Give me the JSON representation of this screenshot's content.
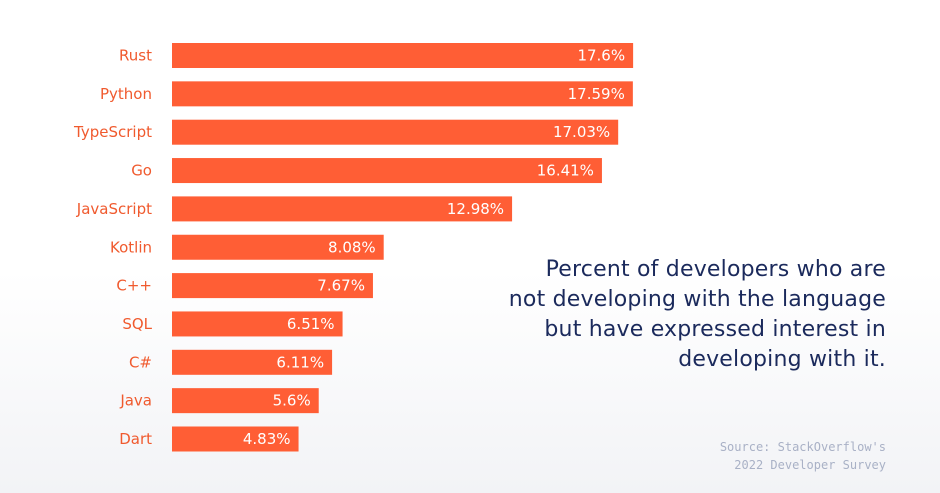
{
  "chart_data": {
    "type": "bar",
    "orientation": "horizontal",
    "categories": [
      "Rust",
      "Python",
      "TypeScript",
      "Go",
      "JavaScript",
      "Kotlin",
      "C++",
      "SQL",
      "C#",
      "Java",
      "Dart"
    ],
    "values": [
      17.6,
      17.59,
      17.03,
      16.41,
      12.98,
      8.08,
      7.67,
      6.51,
      6.11,
      5.6,
      4.83
    ],
    "value_labels": [
      "17.6%",
      "17.59%",
      "17.03%",
      "16.41%",
      "12.98%",
      "8.08%",
      "7.67%",
      "6.51%",
      "6.11%",
      "5.6%",
      "4.83%"
    ],
    "unit": "%",
    "title": "",
    "xlabel": "",
    "ylabel": "",
    "grid": false,
    "legend": "none"
  },
  "annotation": {
    "line1": "Percent of developers who are",
    "line2": "not developing with the language",
    "line3": "but have expressed interest in",
    "line4": "developing with it."
  },
  "source": {
    "line1": "Source: StackOverflow's",
    "line2": "2022 Developer Survey"
  },
  "colors": {
    "bar": "#ff5e35",
    "category_text": "#f05a2e",
    "value_text": "#ffffff",
    "annotation_text": "#1b2a5c",
    "source_text": "#a9b1c6"
  }
}
